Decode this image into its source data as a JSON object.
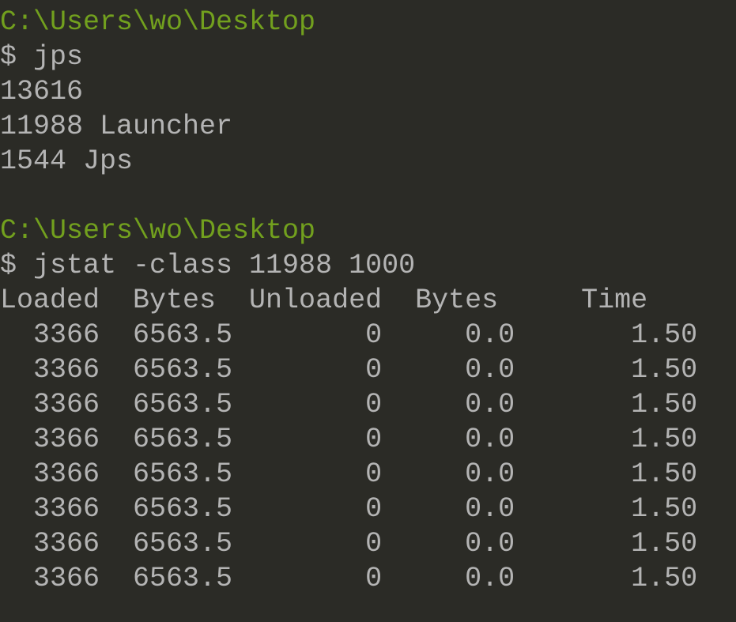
{
  "colors": {
    "background": "#2b2b26",
    "text": "#b4b4b4",
    "path": "#72a01e"
  },
  "blocks": [
    {
      "path": "C:\\Users\\wo\\Desktop",
      "command": "$ jps",
      "output": [
        "13616",
        "11988 Launcher",
        "1544 Jps"
      ]
    },
    {
      "path": "C:\\Users\\wo\\Desktop",
      "command": "$ jstat -class 11988 1000",
      "header": "Loaded  Bytes  Unloaded  Bytes     Time",
      "rows": [
        "  3366  6563.5        0     0.0       1.50",
        "  3366  6563.5        0     0.0       1.50",
        "  3366  6563.5        0     0.0       1.50",
        "  3366  6563.5        0     0.0       1.50",
        "  3366  6563.5        0     0.0       1.50",
        "  3366  6563.5        0     0.0       1.50",
        "  3366  6563.5        0     0.0       1.50",
        "  3366  6563.5        0     0.0       1.50"
      ]
    }
  ]
}
